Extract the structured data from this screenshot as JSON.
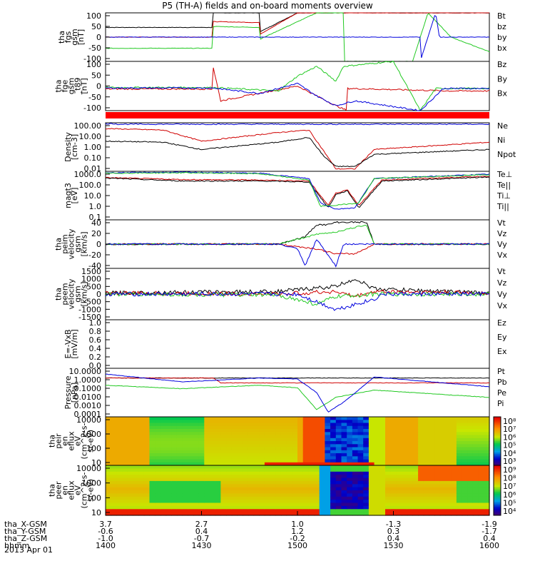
{
  "title": "P5 (TH-A) fields and on-board moments overview",
  "date_label": "2013 Apr 01",
  "colors": {
    "black": "#000000",
    "red": "#d00000",
    "green": "#22c922",
    "blue": "#0000dd",
    "red_bar": "#ff0000"
  },
  "chart_data": [
    {
      "type": "line",
      "panel": "fgs",
      "ylabel": [
        "tha",
        "fgs",
        "gsm",
        "[nT]"
      ],
      "yticks": [
        "100",
        "50",
        "0",
        "-50",
        "-100"
      ],
      "ylim": [
        -100,
        100
      ],
      "series": [
        {
          "name": "Bt",
          "color": "black"
        },
        {
          "name": "bz",
          "color": "red"
        },
        {
          "name": "by",
          "color": "green"
        },
        {
          "name": "bx",
          "color": "blue"
        }
      ]
    },
    {
      "type": "line",
      "panel": "fge",
      "ylabel": [
        "tha",
        "fge",
        "gsm",
        "_t89",
        "[nT]"
      ],
      "yticks": [
        "100",
        "50",
        "0",
        "-50",
        "-100"
      ],
      "ylim": [
        -125,
        100
      ],
      "series": [
        {
          "name": "Bz",
          "color": "red"
        },
        {
          "name": "By",
          "color": "green"
        },
        {
          "name": "Bx",
          "color": "blue"
        }
      ]
    },
    {
      "type": "line",
      "panel": "density",
      "scale": "log",
      "ylabel": [
        "Density",
        "[cm-3]"
      ],
      "yticks": [
        "100.00",
        "10.00",
        "1.00",
        "0.10",
        "0.01"
      ],
      "series": [
        {
          "name": "Ne",
          "color": "red"
        },
        {
          "name": "Ni",
          "color": "black"
        },
        {
          "name": "Npot",
          "color": "blue"
        }
      ]
    },
    {
      "type": "line",
      "panel": "temperature",
      "scale": "log",
      "ylabel": [
        "magt3",
        "[eV]"
      ],
      "yticks": [
        "1000.0",
        "100.0",
        "10.0",
        "1.0",
        "0.1"
      ],
      "series": [
        {
          "name": "Te⊥",
          "color": "red"
        },
        {
          "name": "Te||",
          "color": "black"
        },
        {
          "name": "Ti⊥",
          "color": "blue"
        },
        {
          "name": "Ti||",
          "color": "green"
        }
      ]
    },
    {
      "type": "line",
      "panel": "peim",
      "ylabel": [
        "tha",
        "peim",
        "velocity",
        "gsm",
        "[km/s]"
      ],
      "yticks": [
        "40",
        "20",
        "0",
        "-20",
        "-40"
      ],
      "ylim": [
        -40,
        40
      ],
      "series": [
        {
          "name": "Vt",
          "color": "black"
        },
        {
          "name": "Vz",
          "color": "red"
        },
        {
          "name": "Vy",
          "color": "green"
        },
        {
          "name": "Vx",
          "color": "blue"
        }
      ]
    },
    {
      "type": "line",
      "panel": "peem",
      "ylabel": [
        "tha",
        "peem",
        "velocity",
        "gsm",
        "[km/s]"
      ],
      "yticks": [
        "1500",
        "1000",
        "500",
        "0",
        "-500",
        "-1000",
        "-1500"
      ],
      "ylim": [
        -1500,
        1500
      ],
      "series": [
        {
          "name": "Vt",
          "color": "black"
        },
        {
          "name": "Vz",
          "color": "red"
        },
        {
          "name": "Vy",
          "color": "green"
        },
        {
          "name": "Vx",
          "color": "blue"
        }
      ]
    },
    {
      "type": "line",
      "panel": "efield",
      "ylabel": [
        "E=-VxB",
        "[mV/m]"
      ],
      "yticks": [
        "1.0",
        "0.8",
        "0.6",
        "0.4",
        "0.2",
        "0.0"
      ],
      "ylim": [
        0,
        1
      ],
      "series": [
        {
          "name": "Ez",
          "color": "red"
        },
        {
          "name": "Ey",
          "color": "green"
        },
        {
          "name": "Ex",
          "color": "blue"
        }
      ]
    },
    {
      "type": "line",
      "panel": "pressure",
      "scale": "log",
      "ylabel": [
        "Pressure",
        "[nPa]"
      ],
      "yticks": [
        "10.0000",
        "1.0000",
        "0.1000",
        "0.0100",
        "0.0010",
        "0.0001"
      ],
      "series": [
        {
          "name": "Pt",
          "color": "black"
        },
        {
          "name": "Pb",
          "color": "red"
        },
        {
          "name": "Pe",
          "color": "green"
        },
        {
          "name": "Pi",
          "color": "blue"
        }
      ]
    },
    {
      "type": "heatmap",
      "panel": "peir",
      "ylabel": [
        "tha",
        "peir",
        "en",
        "eflux",
        "eV",
        "(cm^2-s-",
        "sr-eV)"
      ],
      "yticks": [
        "10000",
        "1000",
        "100",
        "10"
      ],
      "colorbar_ticks": [
        "10⁸",
        "10⁷",
        "10⁶",
        "10⁵",
        "10⁴",
        "10³"
      ]
    },
    {
      "type": "heatmap",
      "panel": "peer",
      "ylabel": [
        "tha",
        "peer",
        "en",
        "eflux",
        "eV",
        "(cm^2-s-",
        "sr-eV)"
      ],
      "yticks": [
        "10000",
        "1000",
        "100",
        "10"
      ],
      "colorbar_ticks": [
        "10⁹",
        "10⁸",
        "10⁷",
        "10⁶",
        "10⁵",
        "10⁴"
      ]
    }
  ],
  "xaxis": {
    "rows": [
      {
        "label": "tha_X-GSM",
        "values": [
          "3.7",
          "2.7",
          "1.0",
          "-1.3",
          "-1.9"
        ]
      },
      {
        "label": "tha_Y-GSM",
        "values": [
          "-0.6",
          "0.4",
          "1.2",
          "0.3",
          "-1.7"
        ]
      },
      {
        "label": "tha_Z-GSM",
        "values": [
          "-1.0",
          "-0.7",
          "-0.2",
          "0.4",
          "0.4"
        ]
      },
      {
        "label": "hhmm",
        "values": [
          "1400",
          "1430",
          "1500",
          "1530",
          "1600"
        ]
      }
    ]
  }
}
